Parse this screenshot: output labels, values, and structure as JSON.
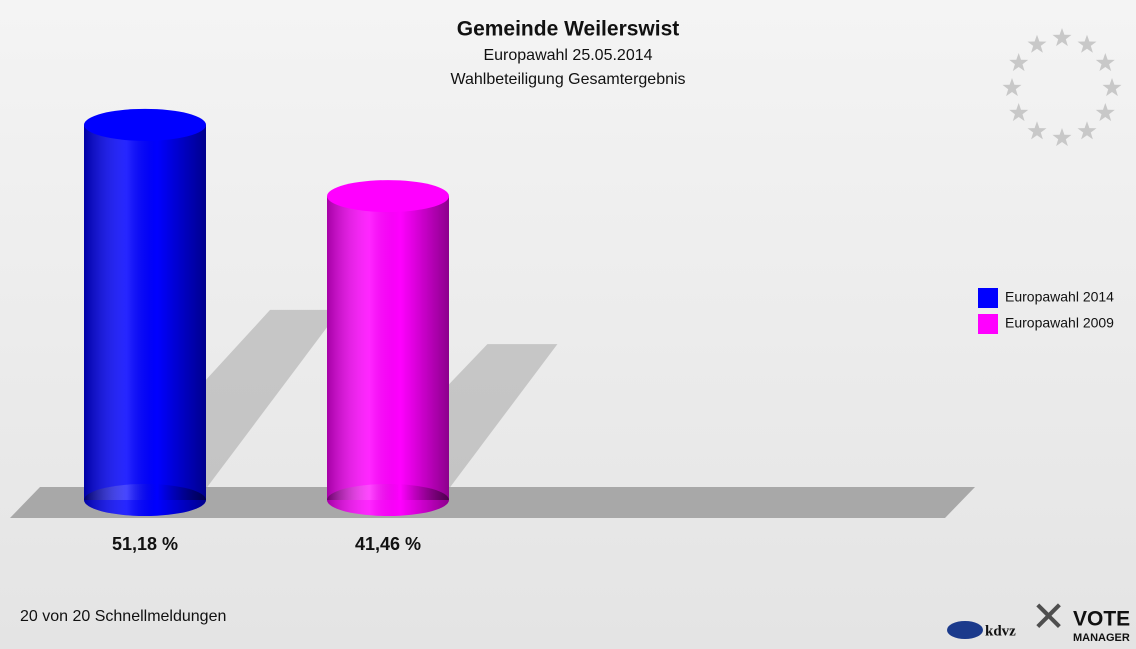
{
  "chart_data": {
    "type": "bar",
    "title": "Gemeinde Weilerswist",
    "subtitle": [
      "Europawahl 25.05.2014",
      "Wahlbeteiligung Gesamtergebnis"
    ],
    "series": [
      {
        "name": "Europawahl 2014",
        "color": "#0000ff",
        "values": [
          51.18
        ],
        "value_labels": [
          "51,18 %"
        ]
      },
      {
        "name": "Europawahl 2009",
        "color": "#ff00ff",
        "values": [
          41.46
        ],
        "value_labels": [
          "41,46 %"
        ]
      }
    ],
    "legend": "right",
    "footer": "20 von 20 Schnellmeldungen",
    "logos": [
      "kdvz",
      "VOTE",
      "MANAGER"
    ]
  }
}
